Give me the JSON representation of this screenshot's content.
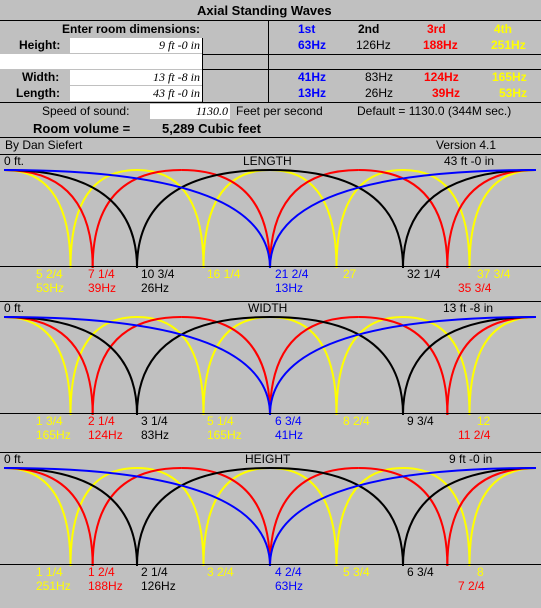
{
  "title": "Axial Standing Waves",
  "enter_label": "Enter room dimensions:",
  "rows": {
    "height": {
      "label": "Height:",
      "value": "9 ft  -0 in"
    },
    "width": {
      "label": "Width:",
      "value": "13 ft  -8 in"
    },
    "length": {
      "label": "Length:",
      "value": "43 ft  -0 in"
    }
  },
  "harmonics": {
    "headers": [
      "1st",
      "2nd",
      "3rd",
      "4th"
    ],
    "height": [
      "63Hz",
      "126Hz",
      "188Hz",
      "251Hz"
    ],
    "width": [
      "41Hz",
      "83Hz",
      "124Hz",
      "165Hz"
    ],
    "length": [
      "13Hz",
      "26Hz",
      "39Hz",
      "53Hz"
    ]
  },
  "speed": {
    "label": "Speed of sound:",
    "value": "1130.0",
    "unit": "Feet per second",
    "default": "Default = 1130.0 (344M sec.)"
  },
  "volume": {
    "label": "Room volume =",
    "value": "5,289 Cubic feet"
  },
  "author": "By Dan Siefert",
  "version": "Version 4.1",
  "colors": {
    "first": "#0000ff",
    "second": "#000000",
    "third": "#ff0000",
    "fourth": "#ffff00",
    "bg": "#c0c0c0"
  },
  "panels": [
    {
      "key": "length",
      "start": "0 ft.",
      "title": "LENGTH",
      "end": "43 ft  -0 in",
      "labels": [
        {
          "pos": "5 2/4",
          "freq": "53Hz",
          "color": "yellow"
        },
        {
          "pos": "7 1/4",
          "freq": "39Hz",
          "color": "red"
        },
        {
          "pos": "10 3/4",
          "freq": "26Hz",
          "color": "black"
        },
        {
          "pos": "16 1/4",
          "freq": "",
          "color": "yellow"
        },
        {
          "pos": "21 2/4",
          "freq": "13Hz",
          "color": "blue"
        },
        {
          "pos": "27",
          "freq": "",
          "color": "yellow"
        },
        {
          "pos": "32 1/4",
          "freq": "",
          "color": "black"
        },
        {
          "pos": "",
          "freq": "35 3/4",
          "color": "red"
        },
        {
          "pos": "37 3/4",
          "freq": "",
          "color": "yellow"
        }
      ]
    },
    {
      "key": "width",
      "start": "0 ft.",
      "title": "WIDTH",
      "end": "13 ft  -8 in",
      "labels": [
        {
          "pos": "1 3/4",
          "freq": "165Hz",
          "color": "yellow"
        },
        {
          "pos": "2 1/4",
          "freq": "124Hz",
          "color": "red"
        },
        {
          "pos": "3 1/4",
          "freq": "83Hz",
          "color": "black"
        },
        {
          "pos": "5 1/4",
          "freq": "165Hz",
          "color": "yellow"
        },
        {
          "pos": "6 3/4",
          "freq": "41Hz",
          "color": "blue"
        },
        {
          "pos": "8 2/4",
          "freq": "",
          "color": "yellow"
        },
        {
          "pos": "9 3/4",
          "freq": "",
          "color": "black"
        },
        {
          "pos": "",
          "freq": "11 2/4",
          "color": "red"
        },
        {
          "pos": "12",
          "freq": "",
          "color": "yellow"
        }
      ]
    },
    {
      "key": "height",
      "start": "0 ft.",
      "title": "HEIGHT",
      "end": "9 ft  -0 in",
      "labels": [
        {
          "pos": "1 1/4",
          "freq": "251Hz",
          "color": "yellow"
        },
        {
          "pos": "1 2/4",
          "freq": "188Hz",
          "color": "red"
        },
        {
          "pos": "2 1/4",
          "freq": "126Hz",
          "color": "black"
        },
        {
          "pos": "3 2/4",
          "freq": "",
          "color": "yellow"
        },
        {
          "pos": "4 2/4",
          "freq": "63Hz",
          "color": "blue"
        },
        {
          "pos": "5 3/4",
          "freq": "",
          "color": "yellow"
        },
        {
          "pos": "6 3/4",
          "freq": "",
          "color": "black"
        },
        {
          "pos": "",
          "freq": "7 2/4",
          "color": "red"
        },
        {
          "pos": "8",
          "freq": "",
          "color": "yellow"
        }
      ]
    }
  ]
}
